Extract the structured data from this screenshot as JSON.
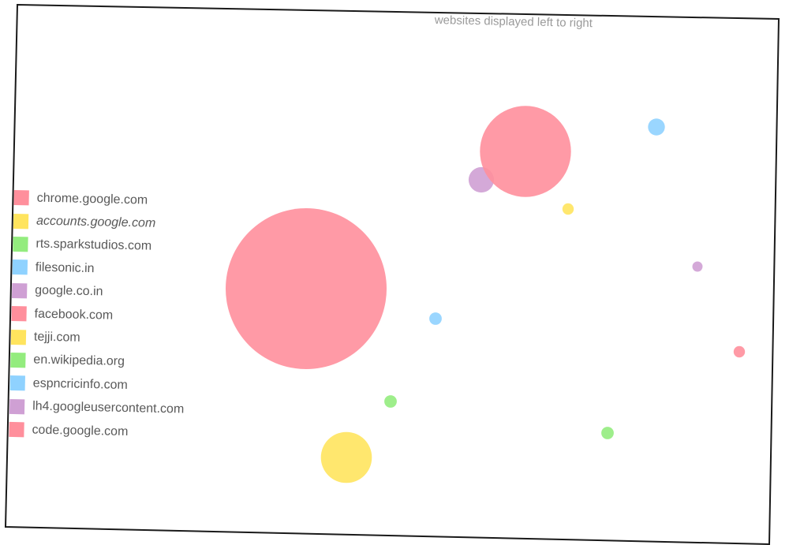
{
  "colors": {
    "pink": "#ff8f9c",
    "yellow": "#ffe45e",
    "green": "#93ec7e",
    "blue": "#8fd2ff",
    "purple": "#cfa0d4",
    "title_text": "#9a9a9a",
    "legend_text": "#595959"
  },
  "chart_data": {
    "type": "scatter",
    "title": "websites displayed left to right",
    "xlabel": "",
    "ylabel": "",
    "grid": false,
    "axes_visible": false,
    "legend_placement": "left",
    "bubble_size_encoding": true,
    "series": [
      {
        "name": "chrome.google.com",
        "color": "pink",
        "italic": false,
        "x": 1,
        "size": 100
      },
      {
        "name": "accounts.google.com",
        "color": "yellow",
        "italic": true,
        "x": 2,
        "size": 10
      },
      {
        "name": "rts.sparkstudios.com",
        "color": "green",
        "italic": false,
        "x": 3,
        "size": 0.6
      },
      {
        "name": "filesonic.in",
        "color": "blue",
        "italic": false,
        "x": 4,
        "size": 0.6
      },
      {
        "name": "google.co.in",
        "color": "purple",
        "italic": false,
        "x": 5,
        "size": 2.5
      },
      {
        "name": "facebook.com",
        "color": "pink",
        "italic": false,
        "x": 6,
        "size": 32
      },
      {
        "name": "tejji.com",
        "color": "yellow",
        "italic": false,
        "x": 7,
        "size": 0.5
      },
      {
        "name": "en.wikipedia.org",
        "color": "green",
        "italic": false,
        "x": 8,
        "size": 0.6
      },
      {
        "name": "espncricinfo.com",
        "color": "blue",
        "italic": false,
        "x": 9,
        "size": 1.1
      },
      {
        "name": "lh4.googleusercontent.com",
        "color": "purple",
        "italic": false,
        "x": 10,
        "size": 0.4
      },
      {
        "name": "code.google.com",
        "color": "pink",
        "italic": false,
        "x": 11,
        "size": 0.5
      }
    ]
  }
}
